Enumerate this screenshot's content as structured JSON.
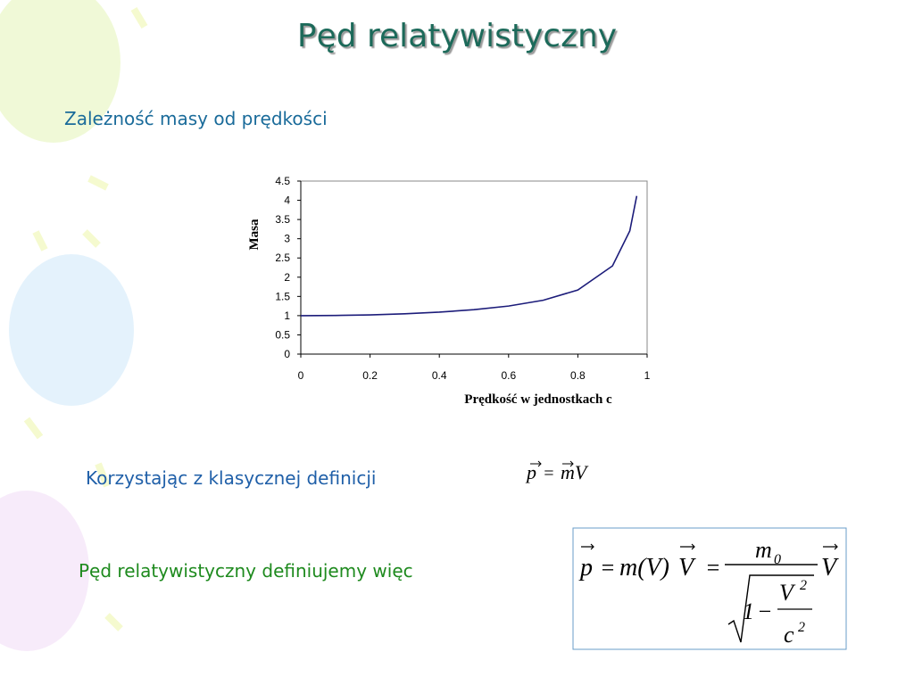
{
  "title": "Pęd relatywistyczny",
  "subtitle": "Zależność masy od prędkości",
  "chart_data": {
    "type": "line",
    "x": [
      0,
      0.1,
      0.2,
      0.3,
      0.4,
      0.5,
      0.6,
      0.7,
      0.8,
      0.9,
      0.95,
      0.97
    ],
    "series": [
      {
        "name": "Masa",
        "color": "#1c1c7a",
        "values": [
          1,
          1.005,
          1.02,
          1.048,
          1.091,
          1.155,
          1.25,
          1.4,
          1.667,
          2.294,
          3.203,
          4.113
        ]
      }
    ],
    "xlabel": "Prędkość w jednostkach c",
    "ylabel": "Masa",
    "xlim": [
      0,
      1
    ],
    "ylim": [
      0,
      4.5
    ],
    "xticks": [
      0,
      0.2,
      0.4,
      0.6,
      0.8,
      1
    ],
    "yticks": [
      0,
      0.5,
      1,
      1.5,
      2,
      2.5,
      3,
      3.5,
      4,
      4.5
    ],
    "grid": false,
    "legend": false
  },
  "classic_text": "Korzystając z klasycznej definicji",
  "classic_formula": [
    "p",
    "=",
    "mV"
  ],
  "relativistic_text": "Pęd relatywistyczny definiujemy więc",
  "relativistic_formula": [
    "p",
    "=",
    "m(V)",
    "V",
    "=",
    "m",
    "0",
    "V",
    "1",
    "−",
    "V",
    "2",
    "c",
    "2"
  ]
}
